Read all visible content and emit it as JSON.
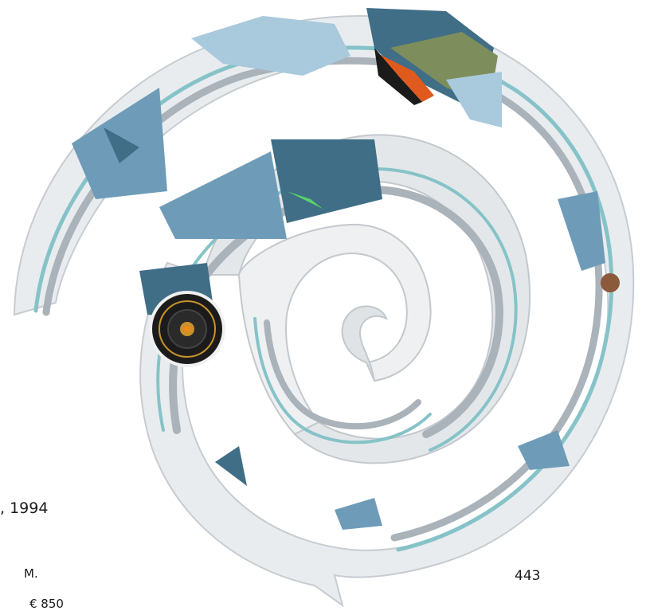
{
  "caption": {
    "year_fragment": ", 1994",
    "line_m": "M.",
    "page_number": "443",
    "price": "€ 850"
  },
  "colors": {
    "band_light": "#e9ecef",
    "band_grey": "#aab2ba",
    "band_teal": "#86c3c8",
    "panel_blue": "#6e9cb8",
    "panel_dark": "#3f6e86",
    "panel_sky": "#a9c9dc",
    "panel_olive": "#7e8d5c",
    "accent_orange": "#e05a1e",
    "knob_black": "#1b1b1b",
    "knob_gold": "#c9922a",
    "dot_copper": "#8a5a3a"
  }
}
